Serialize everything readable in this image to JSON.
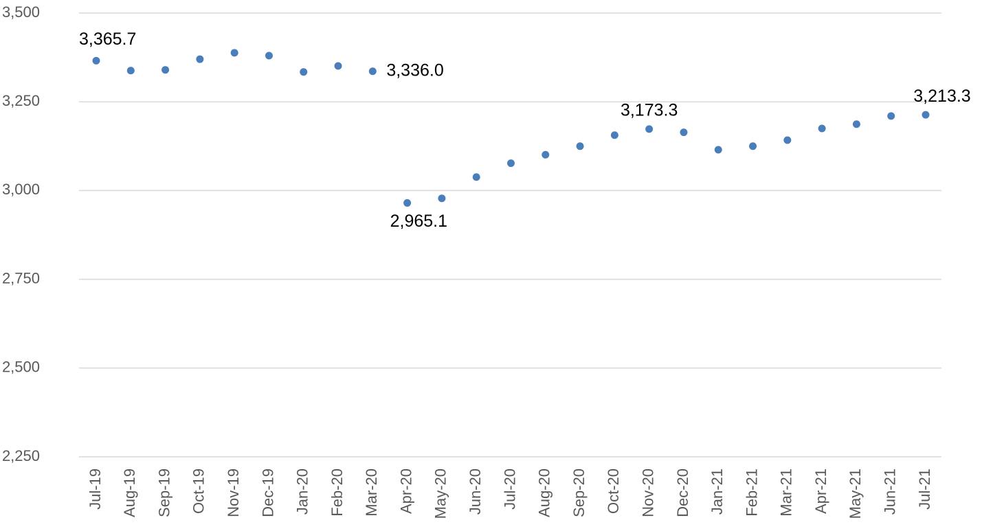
{
  "chart_data": {
    "type": "line",
    "categories": [
      "Jul-19",
      "Aug-19",
      "Sep-19",
      "Oct-19",
      "Nov-19",
      "Dec-19",
      "Jan-20",
      "Feb-20",
      "Mar-20",
      "Apr-20",
      "May-20",
      "Jun-20",
      "Jul-20",
      "Aug-20",
      "Sep-20",
      "Oct-20",
      "Nov-20",
      "Dec-20",
      "Jan-21",
      "Feb-21",
      "Mar-21",
      "Apr-21",
      "May-21",
      "Jun-21",
      "Jul-21"
    ],
    "series": [
      {
        "color": "#4a7ebb",
        "values": [
          3365.7,
          3338,
          3340,
          3370,
          3388,
          3380,
          3334,
          3351,
          3336.0,
          2965.1,
          2978,
          3038,
          3077,
          3101,
          3125,
          3156,
          3173.3,
          3164,
          3115,
          3125,
          3142,
          3175,
          3187,
          3210,
          3213.3
        ],
        "value_labels": [
          "3,365.7",
          null,
          null,
          null,
          null,
          null,
          null,
          null,
          "3,336.0",
          "2,965.1",
          null,
          null,
          null,
          null,
          null,
          null,
          "3,173.3",
          null,
          null,
          null,
          null,
          null,
          null,
          null,
          "3,213.3"
        ]
      }
    ],
    "ylim": [
      2250,
      3500
    ],
    "yticks": [
      {
        "value": 2250,
        "label": "2,250"
      },
      {
        "value": 2500,
        "label": "2,500"
      },
      {
        "value": 2750,
        "label": "2,750"
      },
      {
        "value": 3000,
        "label": "3,000"
      },
      {
        "value": 3250,
        "label": "3,250"
      },
      {
        "value": 3500,
        "label": "3,500"
      }
    ],
    "grid": true
  }
}
